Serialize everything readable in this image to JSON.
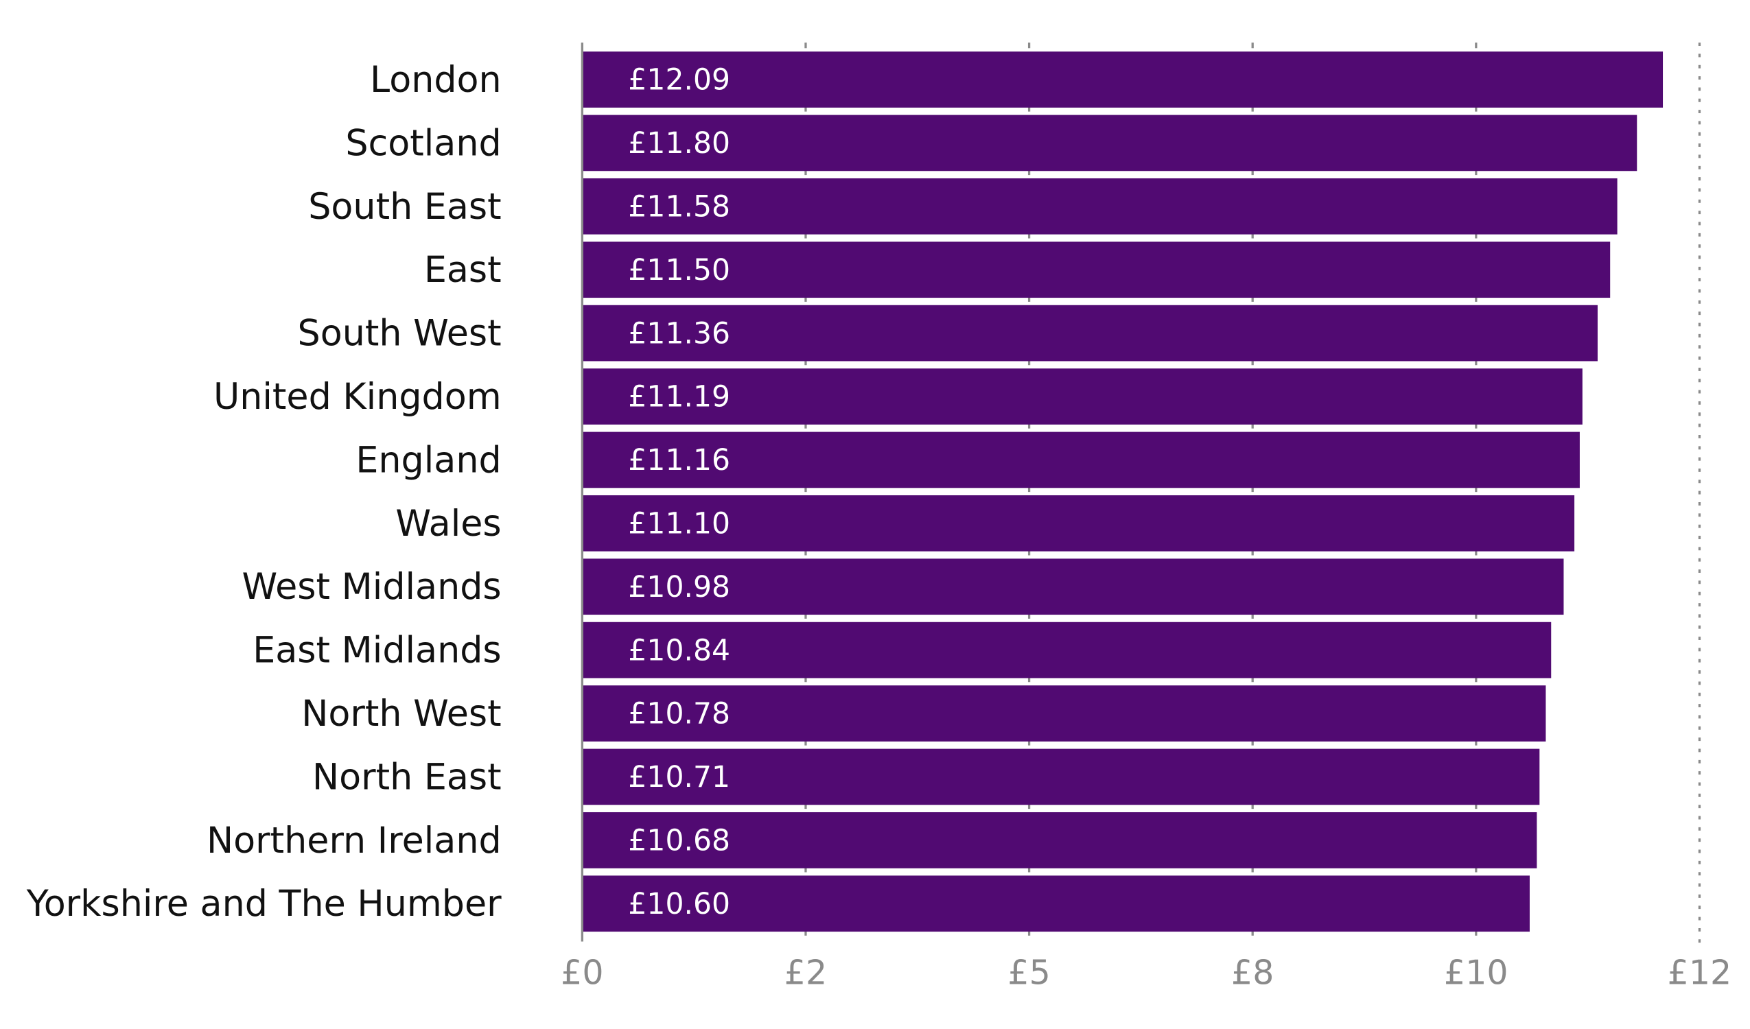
{
  "chart_data": {
    "type": "bar",
    "orientation": "horizontal",
    "categories": [
      "London",
      "Scotland",
      "South East",
      "East",
      "South West",
      "United Kingdom",
      "England",
      "Wales",
      "West Midlands",
      "East Midlands",
      "North West",
      "North East",
      "Northern Ireland",
      "Yorkshire and The Humber"
    ],
    "values": [
      12.09,
      11.8,
      11.58,
      11.5,
      11.36,
      11.19,
      11.16,
      11.1,
      10.98,
      10.84,
      10.78,
      10.71,
      10.68,
      10.6
    ],
    "value_labels": [
      "£12.09",
      "£11.80",
      "£11.58",
      "£11.50",
      "£11.36",
      "£11.19",
      "£11.16",
      "£11.10",
      "£10.98",
      "£10.84",
      "£10.78",
      "£10.71",
      "£10.68",
      "£10.60"
    ],
    "xlim": [
      0,
      12.5
    ],
    "x_ticks": [
      0,
      2.5,
      5,
      7.5,
      10,
      12.5
    ],
    "x_tick_labels": [
      "£0",
      "£2",
      "£5",
      "£8",
      "£10",
      "£12"
    ],
    "title": "",
    "xlabel": "",
    "ylabel": "",
    "grid": "x-axis tick marks; dotted line at max",
    "bar_color": "#510a72",
    "axis_color": "#8a8a8a"
  }
}
